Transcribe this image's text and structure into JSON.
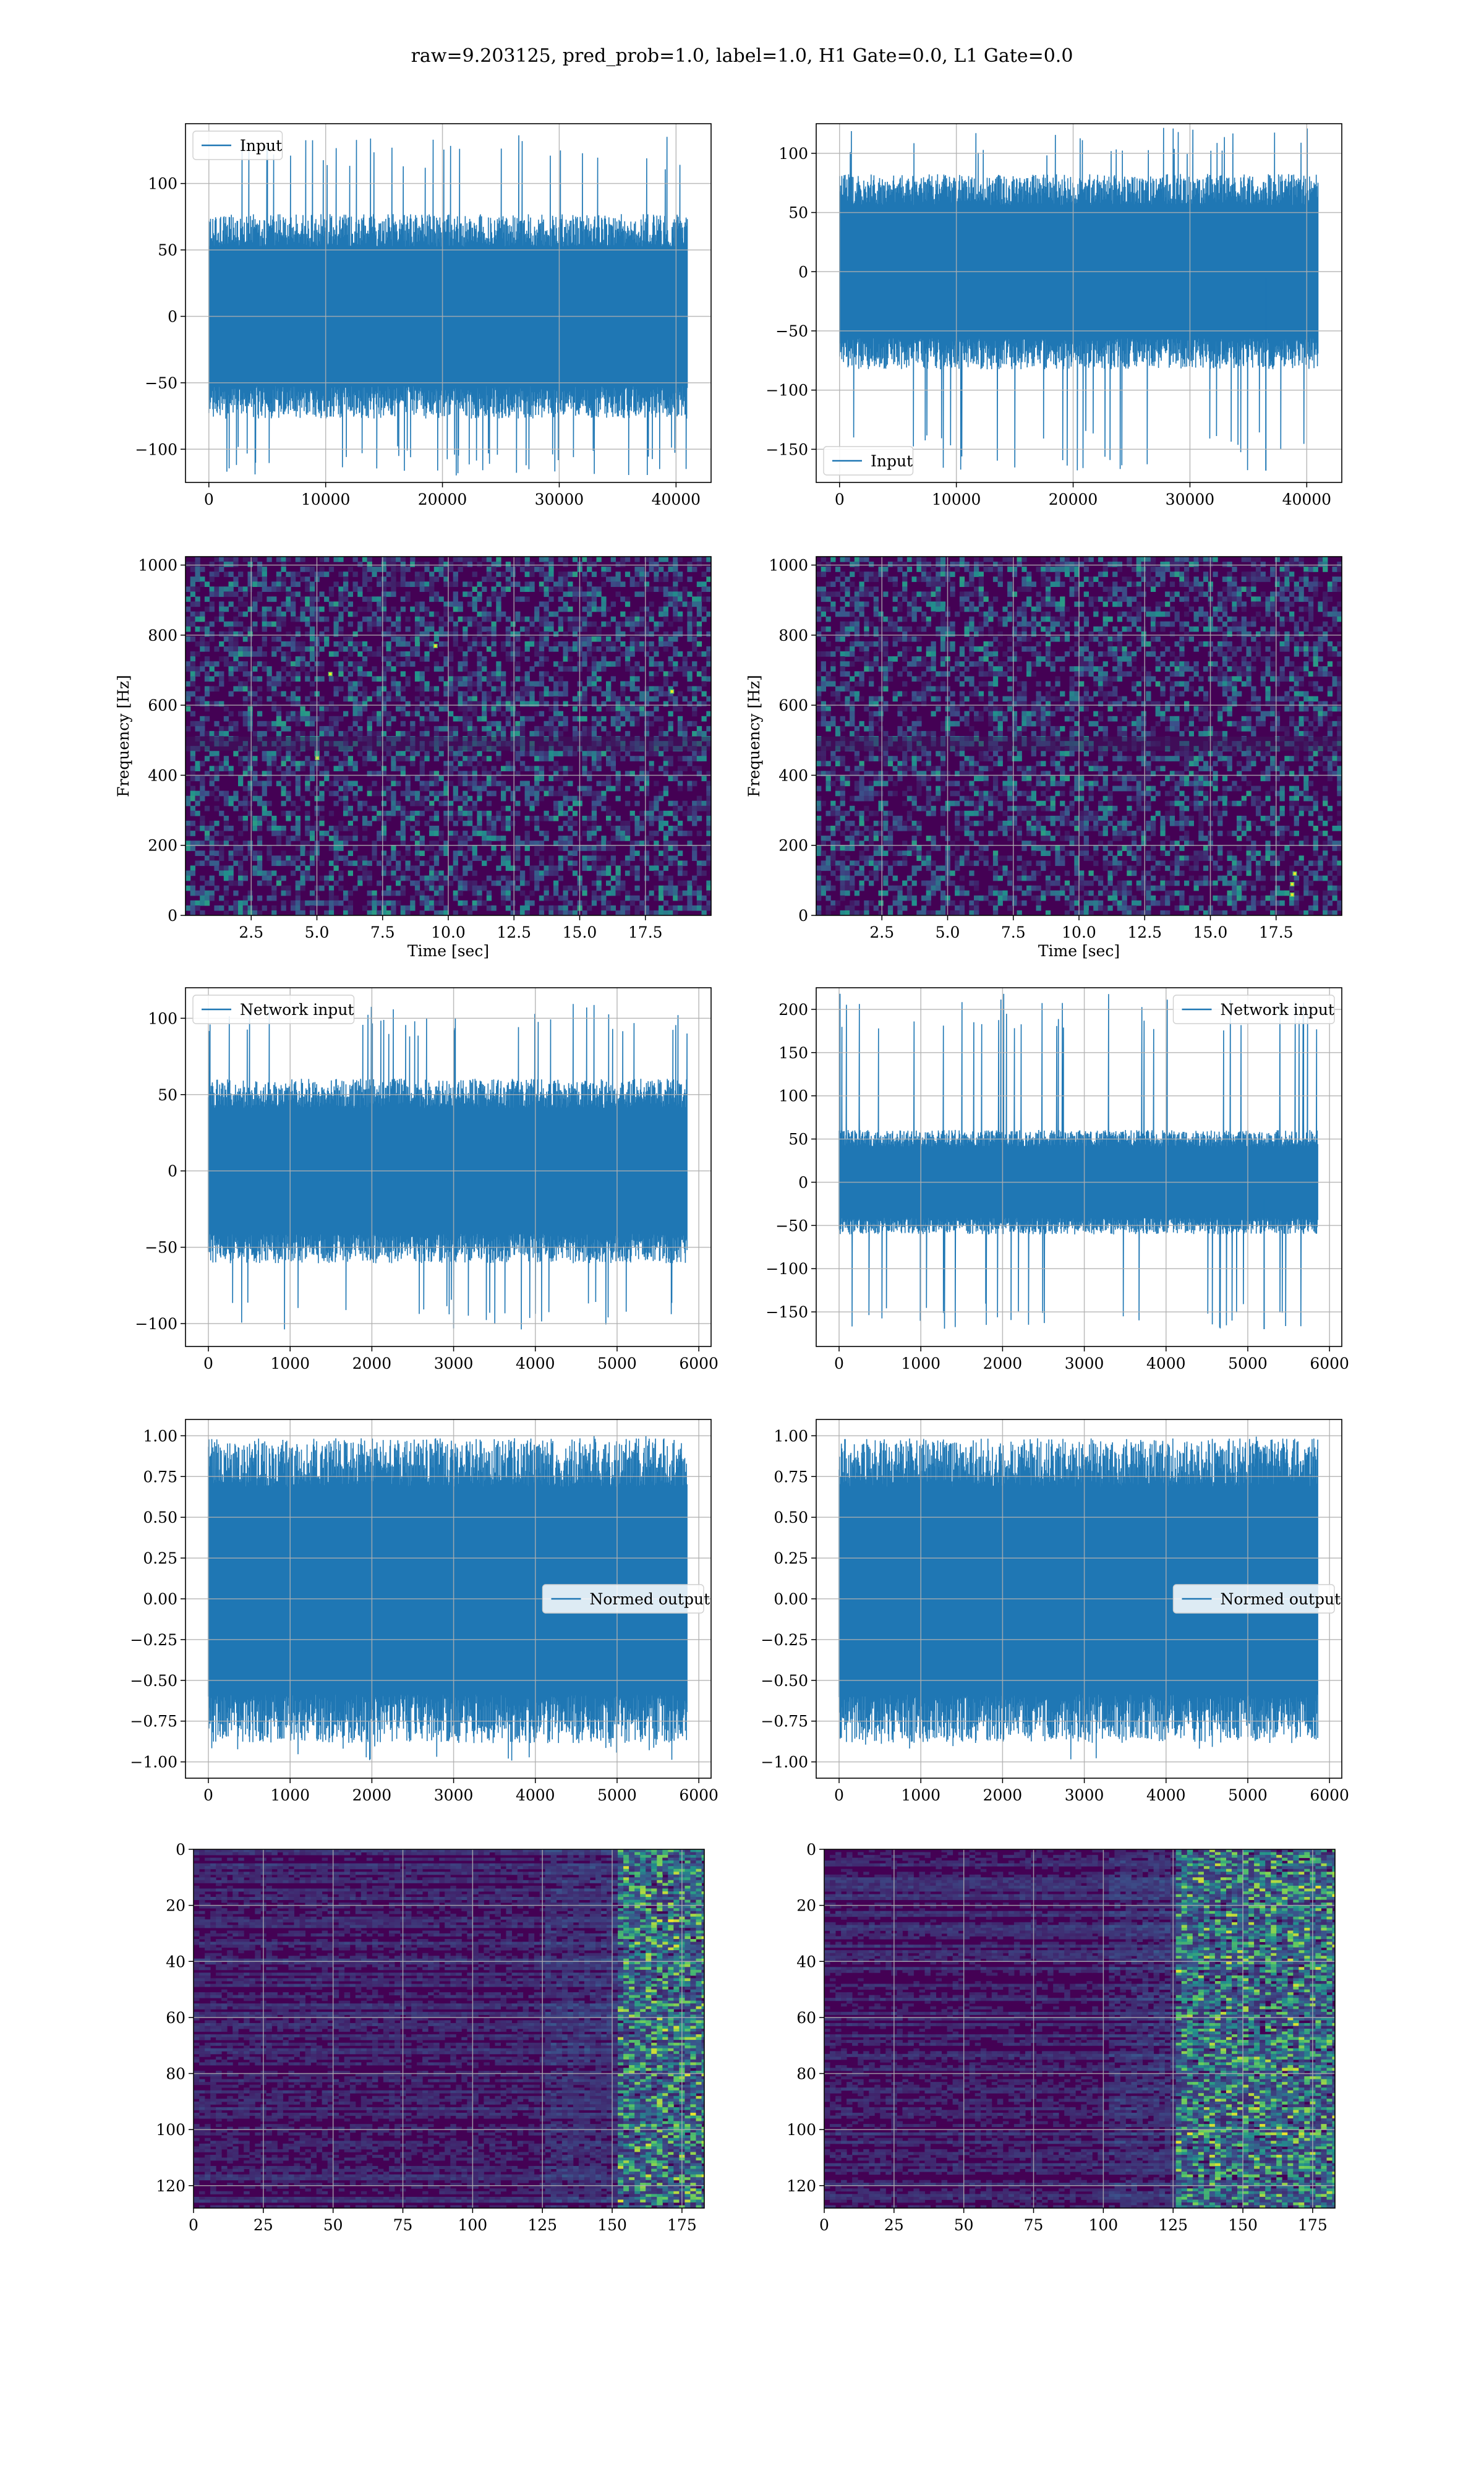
{
  "figure": {
    "suptitle": "raw=9.203125, pred_prob=1.0, label=1.0, H1 Gate=0.0, L1 Gate=0.0"
  },
  "colors": {
    "line": "#1f77b4",
    "grid": "#b0b0b0",
    "axes": "#000000",
    "viridis_dark": "#440154",
    "viridis_mid": "#21918c",
    "viridis_light": "#5ec962",
    "viridis_yellow": "#fde725"
  },
  "chart_data": [
    {
      "id": "r1c1",
      "type": "line",
      "title": "",
      "xlabel": "",
      "ylabel": "",
      "xlim": [
        -2000,
        43000
      ],
      "ylim": [
        -125,
        145
      ],
      "xticks": [
        0,
        10000,
        20000,
        30000,
        40000
      ],
      "xticklabels": [
        "0",
        "10000",
        "20000",
        "30000",
        "40000"
      ],
      "yticks": [
        -100,
        -50,
        0,
        50,
        100
      ],
      "yticklabels": [
        "−100",
        "−50",
        "0",
        "50",
        "100"
      ],
      "grid": true,
      "legend": {
        "labels": [
          "Input"
        ],
        "loc": "upper left"
      },
      "series": [
        {
          "name": "Input",
          "x_range": [
            0,
            40960
          ],
          "typical_envelope": [
            -70,
            70
          ],
          "extremes": [
            -122,
            137
          ]
        }
      ]
    },
    {
      "id": "r1c2",
      "type": "line",
      "title": "",
      "xlabel": "",
      "ylabel": "",
      "xlim": [
        -2000,
        43000
      ],
      "ylim": [
        -178,
        125
      ],
      "xticks": [
        0,
        10000,
        20000,
        30000,
        40000
      ],
      "xticklabels": [
        "0",
        "10000",
        "20000",
        "30000",
        "40000"
      ],
      "yticks": [
        -150,
        -100,
        -50,
        0,
        50,
        100
      ],
      "yticklabels": [
        "−150",
        "−100",
        "−50",
        "0",
        "50",
        "100"
      ],
      "grid": true,
      "legend": {
        "labels": [
          "Input"
        ],
        "loc": "lower left"
      },
      "series": [
        {
          "name": "Input",
          "x_range": [
            0,
            40960
          ],
          "typical_envelope": [
            -75,
            75
          ],
          "extremes": [
            -168,
            122
          ]
        }
      ]
    },
    {
      "id": "r2c1",
      "type": "heatmap",
      "title": "",
      "xlabel": "Time [sec]",
      "ylabel": "Frequency [Hz]",
      "xlim": [
        0,
        20
      ],
      "ylim": [
        0,
        1024
      ],
      "xticks": [
        2.5,
        5.0,
        7.5,
        10.0,
        12.5,
        15.0,
        17.5
      ],
      "xticklabels": [
        "2.5",
        "5.0",
        "7.5",
        "10.0",
        "12.5",
        "15.0",
        "17.5"
      ],
      "yticks": [
        0,
        200,
        400,
        600,
        800,
        1000
      ],
      "yticklabels": [
        "0",
        "200",
        "400",
        "600",
        "800",
        "1000"
      ],
      "grid": true,
      "colormap": "viridis",
      "bright_spots": [
        [
          5.0,
          450
        ],
        [
          5.5,
          690
        ],
        [
          9.5,
          770
        ],
        [
          18.5,
          640
        ]
      ]
    },
    {
      "id": "r2c2",
      "type": "heatmap",
      "title": "",
      "xlabel": "Time [sec]",
      "ylabel": "Frequency [Hz]",
      "xlim": [
        0,
        20
      ],
      "ylim": [
        0,
        1024
      ],
      "xticks": [
        2.5,
        5.0,
        7.5,
        10.0,
        12.5,
        15.0,
        17.5
      ],
      "xticklabels": [
        "2.5",
        "5.0",
        "7.5",
        "10.0",
        "12.5",
        "15.0",
        "17.5"
      ],
      "yticks": [
        0,
        200,
        400,
        600,
        800,
        1000
      ],
      "yticklabels": [
        "0",
        "200",
        "400",
        "600",
        "800",
        "1000"
      ],
      "grid": true,
      "colormap": "viridis",
      "bright_spots": [
        [
          18.1,
          60
        ],
        [
          18.1,
          90
        ],
        [
          18.2,
          120
        ]
      ]
    },
    {
      "id": "r3c1",
      "type": "line",
      "title": "",
      "xlabel": "",
      "ylabel": "",
      "xlim": [
        -280,
        6150
      ],
      "ylim": [
        -115,
        120
      ],
      "xticks": [
        0,
        1000,
        2000,
        3000,
        4000,
        5000,
        6000
      ],
      "xticklabels": [
        "0",
        "1000",
        "2000",
        "3000",
        "4000",
        "5000",
        "6000"
      ],
      "yticks": [
        -100,
        -50,
        0,
        50,
        100
      ],
      "yticklabels": [
        "−100",
        "−50",
        "0",
        "50",
        "100"
      ],
      "grid": true,
      "legend": {
        "labels": [
          "Network input"
        ],
        "loc": "upper left"
      },
      "series": [
        {
          "name": "Network input",
          "x_range": [
            0,
            5856
          ],
          "typical_envelope": [
            -55,
            55
          ],
          "extremes": [
            -104,
            110
          ]
        }
      ]
    },
    {
      "id": "r3c2",
      "type": "line",
      "title": "",
      "xlabel": "",
      "ylabel": "",
      "xlim": [
        -280,
        6150
      ],
      "ylim": [
        -190,
        225
      ],
      "xticks": [
        0,
        1000,
        2000,
        3000,
        4000,
        5000,
        6000
      ],
      "xticklabels": [
        "0",
        "1000",
        "2000",
        "3000",
        "4000",
        "5000",
        "6000"
      ],
      "yticks": [
        -150,
        -100,
        -50,
        0,
        50,
        100,
        150,
        200
      ],
      "yticklabels": [
        "−150",
        "−100",
        "−50",
        "0",
        "50",
        "100",
        "150",
        "200"
      ],
      "grid": true,
      "legend": {
        "labels": [
          "Network input"
        ],
        "loc": "upper right"
      },
      "series": [
        {
          "name": "Network input",
          "x_range": [
            0,
            5856
          ],
          "typical_envelope": [
            -55,
            55
          ],
          "extremes": [
            -170,
            218
          ]
        }
      ]
    },
    {
      "id": "r4c1",
      "type": "area",
      "title": "",
      "xlabel": "",
      "ylabel": "",
      "xlim": [
        -280,
        6150
      ],
      "ylim": [
        -1.1,
        1.1
      ],
      "xticks": [
        0,
        1000,
        2000,
        3000,
        4000,
        5000,
        6000
      ],
      "xticklabels": [
        "0",
        "1000",
        "2000",
        "3000",
        "4000",
        "5000",
        "6000"
      ],
      "yticks": [
        -1.0,
        -0.75,
        -0.5,
        -0.25,
        0.0,
        0.25,
        0.5,
        0.75,
        1.0
      ],
      "yticklabels": [
        "−1.00",
        "−0.75",
        "−0.50",
        "−0.25",
        "0.00",
        "0.25",
        "0.50",
        "0.75",
        "1.00"
      ],
      "grid": true,
      "legend": {
        "labels": [
          "Normed output"
        ],
        "loc": "center right"
      },
      "series": [
        {
          "name": "Normed output",
          "x_range": [
            0,
            5856
          ],
          "typical_envelope": [
            -0.8,
            0.9
          ],
          "extremes": [
            -1.0,
            1.0
          ]
        }
      ]
    },
    {
      "id": "r4c2",
      "type": "area",
      "title": "",
      "xlabel": "",
      "ylabel": "",
      "xlim": [
        -280,
        6150
      ],
      "ylim": [
        -1.1,
        1.1
      ],
      "xticks": [
        0,
        1000,
        2000,
        3000,
        4000,
        5000,
        6000
      ],
      "xticklabels": [
        "0",
        "1000",
        "2000",
        "3000",
        "4000",
        "5000",
        "6000"
      ],
      "yticks": [
        -1.0,
        -0.75,
        -0.5,
        -0.25,
        0.0,
        0.25,
        0.5,
        0.75,
        1.0
      ],
      "yticklabels": [
        "−1.00",
        "−0.75",
        "−0.50",
        "−0.25",
        "0.00",
        "0.25",
        "0.50",
        "0.75",
        "1.00"
      ],
      "grid": true,
      "legend": {
        "labels": [
          "Normed output"
        ],
        "loc": "center right"
      },
      "series": [
        {
          "name": "Normed output",
          "x_range": [
            0,
            5856
          ],
          "typical_envelope": [
            -0.8,
            0.9
          ],
          "extremes": [
            -1.0,
            1.0
          ]
        }
      ]
    },
    {
      "id": "r5c1",
      "type": "heatmap",
      "title": "",
      "xlabel": "",
      "ylabel": "",
      "xlim": [
        0,
        183
      ],
      "ylim": [
        128,
        0
      ],
      "xticks": [
        0,
        25,
        50,
        75,
        100,
        125,
        150,
        175
      ],
      "xticklabels": [
        "0",
        "25",
        "50",
        "75",
        "100",
        "125",
        "150",
        "175"
      ],
      "yticks": [
        0,
        20,
        40,
        60,
        80,
        100,
        120
      ],
      "yticklabels": [
        "0",
        "20",
        "40",
        "60",
        "80",
        "100",
        "120"
      ],
      "grid": true,
      "colormap": "viridis",
      "activity_onset_column": 150
    },
    {
      "id": "r5c2",
      "type": "heatmap",
      "title": "",
      "xlabel": "",
      "ylabel": "",
      "xlim": [
        0,
        183
      ],
      "ylim": [
        128,
        0
      ],
      "xticks": [
        0,
        25,
        50,
        75,
        100,
        125,
        150,
        175
      ],
      "xticklabels": [
        "0",
        "25",
        "50",
        "75",
        "100",
        "125",
        "150",
        "175"
      ],
      "yticks": [
        0,
        20,
        40,
        60,
        80,
        100,
        120
      ],
      "yticklabels": [
        "0",
        "20",
        "40",
        "60",
        "80",
        "100",
        "120"
      ],
      "grid": true,
      "colormap": "viridis",
      "activity_onset_column": 125
    }
  ]
}
